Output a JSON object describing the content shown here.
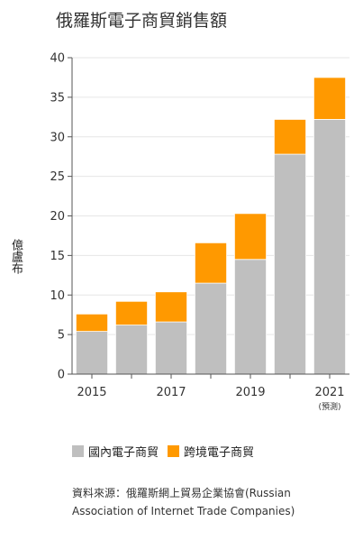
{
  "title": "俄羅斯電子商貿銷售額",
  "legend": {
    "domestic": "國內電子商貿",
    "cross": "跨境電子商貿"
  },
  "source": "資料來源：俄羅斯網上貿易企業協會(Russian Association of Internet Trade Companies)",
  "colors": {
    "domestic": "#bfbfbf",
    "cross": "#ff9900"
  },
  "chart_data": {
    "type": "bar",
    "stacked": true,
    "title": "俄羅斯電子商貿銷售額",
    "ylabel": "億盧布",
    "ylim": [
      0,
      40
    ],
    "yticks": [
      0,
      5,
      10,
      15,
      20,
      25,
      30,
      35,
      40
    ],
    "categories": [
      "2015",
      "2016",
      "2017",
      "2018",
      "2019",
      "2020",
      "2021"
    ],
    "xtick_labels": [
      "2015",
      "",
      "2017",
      "",
      "2019",
      "",
      "2021"
    ],
    "xtick_sublabels": [
      "",
      "",
      "",
      "",
      "",
      "",
      "(預測)"
    ],
    "series": [
      {
        "name": "國內電子商貿",
        "values": [
          5.4,
          6.2,
          6.6,
          11.5,
          14.5,
          27.8,
          32.2
        ]
      },
      {
        "name": "跨境電子商貿",
        "values": [
          2.2,
          3.0,
          3.8,
          5.1,
          5.8,
          4.4,
          5.3
        ]
      }
    ]
  }
}
